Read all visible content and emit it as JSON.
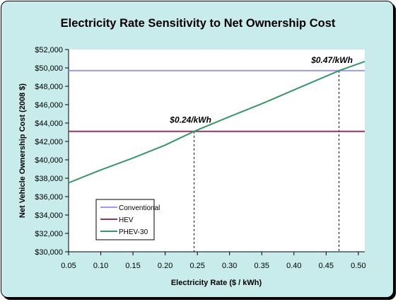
{
  "chart_data": {
    "type": "line",
    "title": "Electricity Rate Sensitivity to Net Ownership Cost",
    "xlabel": "Electricity Rate ($ / kWh)",
    "ylabel": "Net Vehicle Ownership Cost (2008 $)",
    "xlim": [
      0.05,
      0.51
    ],
    "ylim": [
      30000,
      52000
    ],
    "x_ticks": [
      "0.05",
      "0.10",
      "0.15",
      "0.20",
      "0.25",
      "0.30",
      "0.35",
      "0.40",
      "0.45",
      "0.50"
    ],
    "y_ticks": [
      "$30,000",
      "$32,000",
      "$34,000",
      "$36,000",
      "$38,000",
      "$40,000",
      "$42,000",
      "$44,000",
      "$46,000",
      "$48,000",
      "$50,000",
      "$52,000"
    ],
    "series": [
      {
        "name": "Conventional",
        "color": "#9999ff",
        "x": [
          0.05,
          0.51
        ],
        "y": [
          49700,
          49700
        ]
      },
      {
        "name": "HEV",
        "color": "#993366",
        "x": [
          0.05,
          0.51
        ],
        "y": [
          43100,
          43100
        ]
      },
      {
        "name": "PHEV-30",
        "color": "#339966",
        "x": [
          0.05,
          0.1,
          0.15,
          0.2,
          0.245,
          0.3,
          0.35,
          0.4,
          0.47,
          0.51
        ],
        "y": [
          37500,
          38900,
          40200,
          41600,
          43100,
          44700,
          46100,
          47600,
          49700,
          50700
        ]
      }
    ],
    "annotations": [
      {
        "text": "$0.24/kWh",
        "x": 0.245,
        "y": 43100
      },
      {
        "text": "$0.47/kWh",
        "x": 0.47,
        "y": 49700
      }
    ],
    "legend": {
      "placement": "bottom-left",
      "entries": [
        "Conventional",
        "HEV",
        "PHEV-30"
      ]
    },
    "grid": false
  }
}
